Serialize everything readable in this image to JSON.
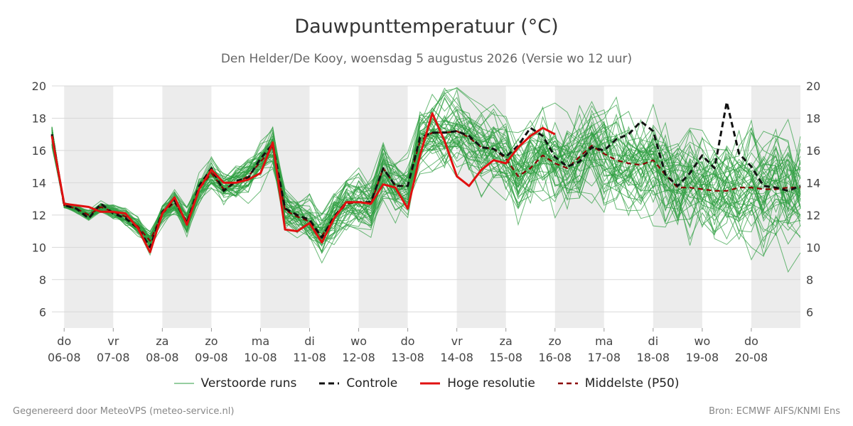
{
  "title": "Dauwpunttemperatuur (°C)",
  "subtitle": "Den Helder/De Kooy, woensdag  5 augustus 2026 (Versie wo 12 uur)",
  "footer": {
    "left": "Gegenereerd door MeteoVPS (meteo-service.nl)",
    "right": "Bron: ECMWF AIFS/KNMI Ens"
  },
  "legend": [
    {
      "label": "Verstoorde runs",
      "color": "#2e9e40",
      "style": "thin"
    },
    {
      "label": "Controle",
      "color": "#111111",
      "style": "dashed"
    },
    {
      "label": "Hoge resolutie",
      "color": "#e01010",
      "style": "solid"
    },
    {
      "label": "Middelste (P50)",
      "color": "#8b0000",
      "style": "dashed"
    }
  ],
  "chart_data": {
    "type": "line",
    "x_unit": "days since 06-08 00:00",
    "xlim": [
      -0.25,
      15.0
    ],
    "ylim": [
      5,
      20
    ],
    "yticks": [
      6,
      8,
      10,
      12,
      14,
      16,
      18,
      20
    ],
    "y_axis_both_sides": true,
    "grid": true,
    "weekend_shading": [
      [
        0,
        1
      ],
      [
        2,
        3
      ],
      [
        4,
        5
      ],
      [
        6,
        7
      ],
      [
        8,
        9
      ],
      [
        10,
        11
      ],
      [
        12,
        13
      ],
      [
        14,
        15
      ]
    ],
    "x_ticks": [
      {
        "day": "do",
        "date": "06-08"
      },
      {
        "day": "vr",
        "date": "07-08"
      },
      {
        "day": "za",
        "date": "08-08"
      },
      {
        "day": "zo",
        "date": "09-08"
      },
      {
        "day": "ma",
        "date": "10-08"
      },
      {
        "day": "di",
        "date": "11-08"
      },
      {
        "day": "wo",
        "date": "12-08"
      },
      {
        "day": "do",
        "date": "13-08"
      },
      {
        "day": "vr",
        "date": "14-08"
      },
      {
        "day": "za",
        "date": "15-08"
      },
      {
        "day": "zo",
        "date": "16-08"
      },
      {
        "day": "ma",
        "date": "17-08"
      },
      {
        "day": "di",
        "date": "18-08"
      },
      {
        "day": "wo",
        "date": "19-08"
      },
      {
        "day": "do",
        "date": "20-08"
      }
    ],
    "series": [
      {
        "name": "Hoge resolutie",
        "color": "#e01010",
        "x": [
          -0.25,
          0,
          0.25,
          0.5,
          0.75,
          1,
          1.25,
          1.5,
          1.75,
          2,
          2.25,
          2.5,
          2.75,
          3,
          3.25,
          3.5,
          3.75,
          4,
          4.25,
          4.5,
          4.75,
          5,
          5.25,
          5.5,
          5.75,
          6,
          6.25,
          6.5,
          6.75,
          7,
          7.25,
          7.5,
          7.75,
          8,
          8.25,
          8.5,
          8.75,
          9,
          9.25,
          9.5,
          9.75,
          10
        ],
        "y": [
          16.9,
          12.7,
          12.6,
          12.5,
          12.2,
          12.2,
          12.1,
          11.2,
          9.7,
          12.1,
          13.1,
          11.4,
          13.6,
          14.8,
          14.0,
          14.0,
          14.2,
          14.6,
          16.5,
          11.1,
          11.0,
          11.5,
          10.3,
          11.8,
          12.8,
          12.8,
          12.7,
          13.9,
          13.7,
          12.4,
          15.7,
          18.3,
          16.6,
          14.4,
          13.8,
          14.8,
          15.4,
          15.2,
          16.2,
          16.9,
          17.4,
          17.0
        ]
      },
      {
        "name": "Controle",
        "color": "#111111",
        "x": [
          -0.25,
          0,
          0.25,
          0.5,
          0.75,
          1,
          1.25,
          1.5,
          1.75,
          2,
          2.25,
          2.5,
          2.75,
          3,
          3.25,
          3.5,
          3.75,
          4,
          4.25,
          4.5,
          4.75,
          5,
          5.25,
          5.5,
          5.75,
          6,
          6.25,
          6.5,
          6.75,
          7,
          7.25,
          7.5,
          7.75,
          8,
          8.25,
          8.5,
          8.75,
          9,
          9.25,
          9.5,
          9.75,
          10,
          10.25,
          10.5,
          10.75,
          11,
          11.25,
          11.5,
          11.75,
          12,
          12.25,
          12.5,
          12.75,
          13,
          13.25,
          13.5,
          13.75,
          14,
          14.25,
          14.5,
          14.75,
          15
        ],
        "y": [
          17.0,
          12.6,
          12.4,
          11.8,
          12.7,
          12.1,
          11.8,
          11.2,
          10.0,
          12.2,
          12.9,
          11.5,
          13.8,
          14.9,
          13.5,
          14.1,
          14.3,
          15.5,
          16.4,
          12.4,
          12.0,
          11.7,
          10.6,
          11.9,
          12.8,
          12.8,
          12.8,
          14.9,
          13.8,
          13.8,
          16.8,
          17.1,
          17.1,
          17.2,
          16.9,
          16.2,
          16.1,
          15.6,
          16.3,
          17.4,
          16.9,
          15.6,
          15.0,
          15.3,
          16.2,
          16.0,
          16.7,
          17.0,
          17.8,
          17.2,
          14.5,
          13.8,
          14.6,
          15.7,
          14.9,
          19.0,
          15.8,
          15.0,
          13.8,
          13.7,
          13.5,
          13.8
        ]
      },
      {
        "name": "Middelste (P50)",
        "color": "#8b0000",
        "x": [
          -0.25,
          0,
          0.25,
          0.5,
          0.75,
          1,
          1.25,
          1.5,
          1.75,
          2,
          2.25,
          2.5,
          2.75,
          3,
          3.25,
          3.5,
          3.75,
          4,
          4.25,
          4.5,
          4.75,
          5,
          5.25,
          5.5,
          5.75,
          6,
          6.25,
          6.5,
          6.75,
          7,
          7.25,
          7.5,
          7.75,
          8,
          8.25,
          8.5,
          8.75,
          9,
          9.25,
          9.5,
          9.75,
          10,
          10.25,
          10.5,
          10.75,
          11,
          11.25,
          11.5,
          11.75,
          12,
          12.25,
          12.5,
          12.75,
          13,
          13.25,
          13.5,
          13.75,
          14,
          14.25,
          14.5,
          14.75,
          15
        ],
        "y": [
          17.0,
          12.6,
          12.4,
          12.0,
          12.5,
          12.2,
          11.9,
          11.3,
          10.4,
          12.1,
          12.8,
          11.6,
          13.6,
          14.6,
          13.6,
          14.0,
          14.4,
          15.3,
          16.2,
          12.3,
          11.9,
          11.6,
          10.7,
          11.8,
          12.7,
          12.8,
          12.7,
          14.9,
          13.8,
          13.8,
          16.6,
          17.1,
          17.1,
          17.2,
          16.8,
          16.2,
          16.1,
          15.5,
          14.4,
          14.9,
          15.7,
          15.2,
          14.9,
          15.6,
          16.3,
          15.8,
          15.4,
          15.2,
          15.1,
          15.4,
          14.5,
          13.7,
          13.7,
          13.6,
          13.5,
          13.5,
          13.7,
          13.7,
          13.6,
          13.6,
          13.7,
          13.7
        ]
      }
    ]
  }
}
